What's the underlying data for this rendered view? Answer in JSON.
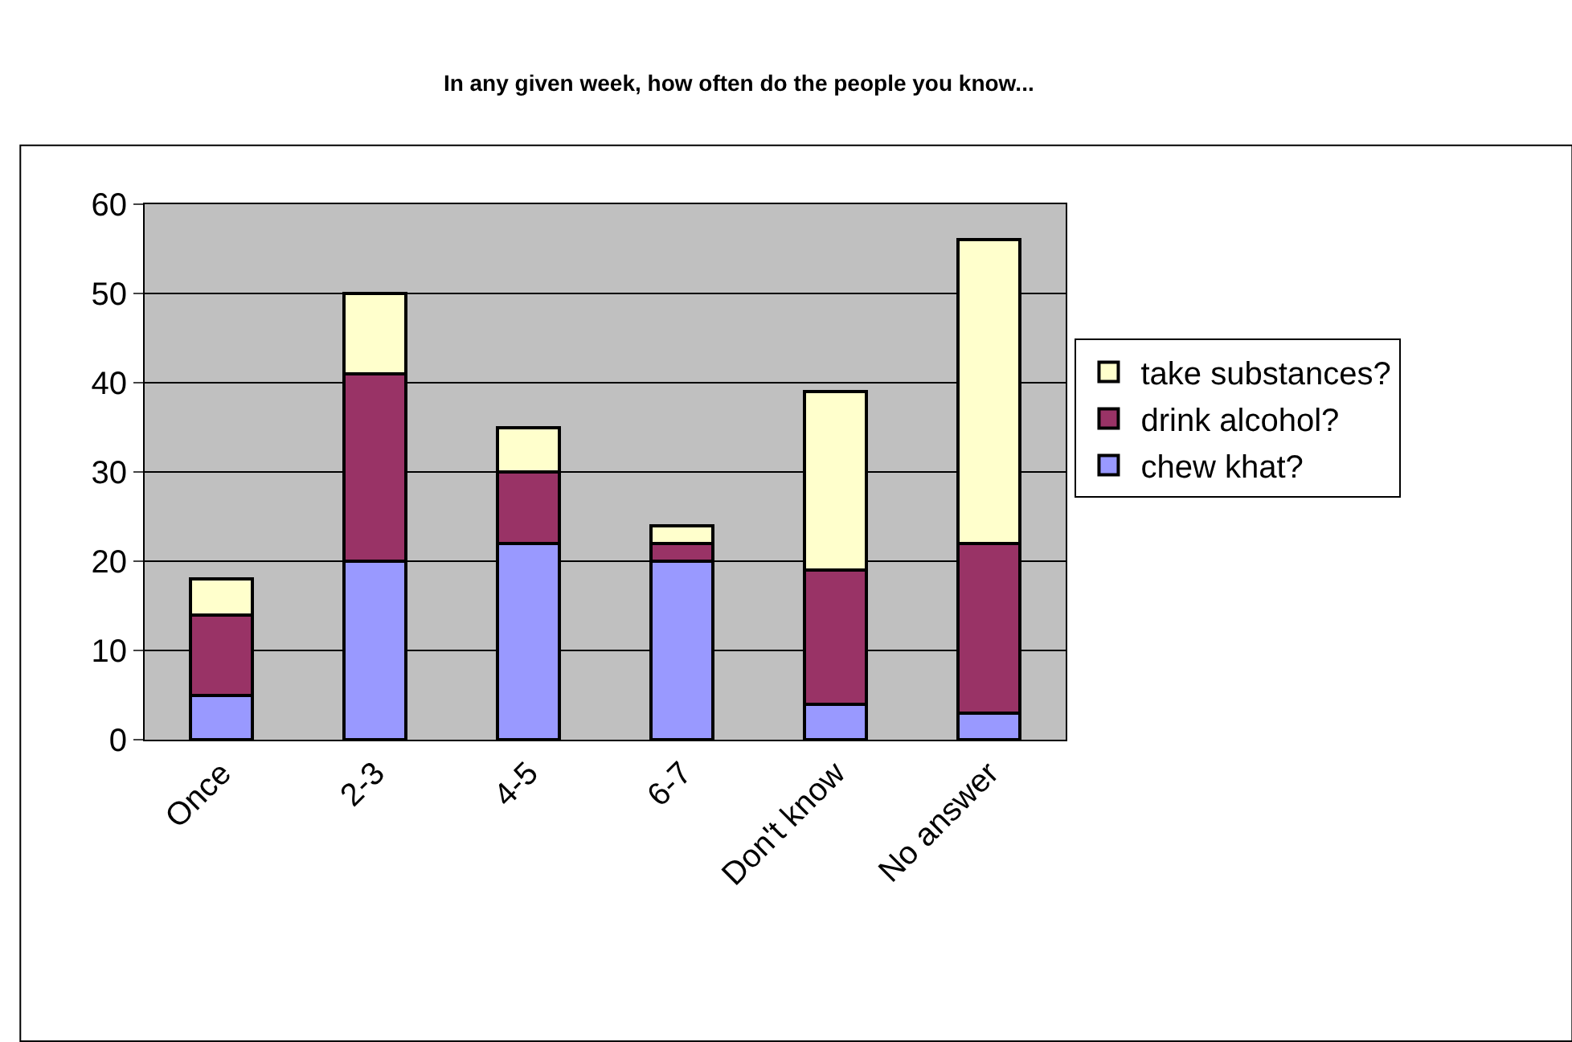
{
  "chart_data": {
    "type": "bar",
    "title": "In any given week, how often do the people you know...",
    "categories": [
      "Once",
      "2-3",
      "4-5",
      "6-7",
      "Don't know",
      "No answer"
    ],
    "stacked": true,
    "series": [
      {
        "name": "chew khat?",
        "color": "#9999ff",
        "values": [
          5,
          20,
          22,
          20,
          4,
          3
        ]
      },
      {
        "name": "drink alcohol?",
        "color": "#993366",
        "values": [
          9,
          21,
          8,
          2,
          15,
          19
        ]
      },
      {
        "name": "take substances?",
        "color": "#ffffcc",
        "values": [
          4,
          9,
          5,
          2,
          20,
          34
        ]
      }
    ],
    "ylim": [
      0,
      60
    ],
    "yticks": [
      0,
      10,
      20,
      30,
      40,
      50,
      60
    ],
    "grid": "y",
    "legend": "right"
  }
}
